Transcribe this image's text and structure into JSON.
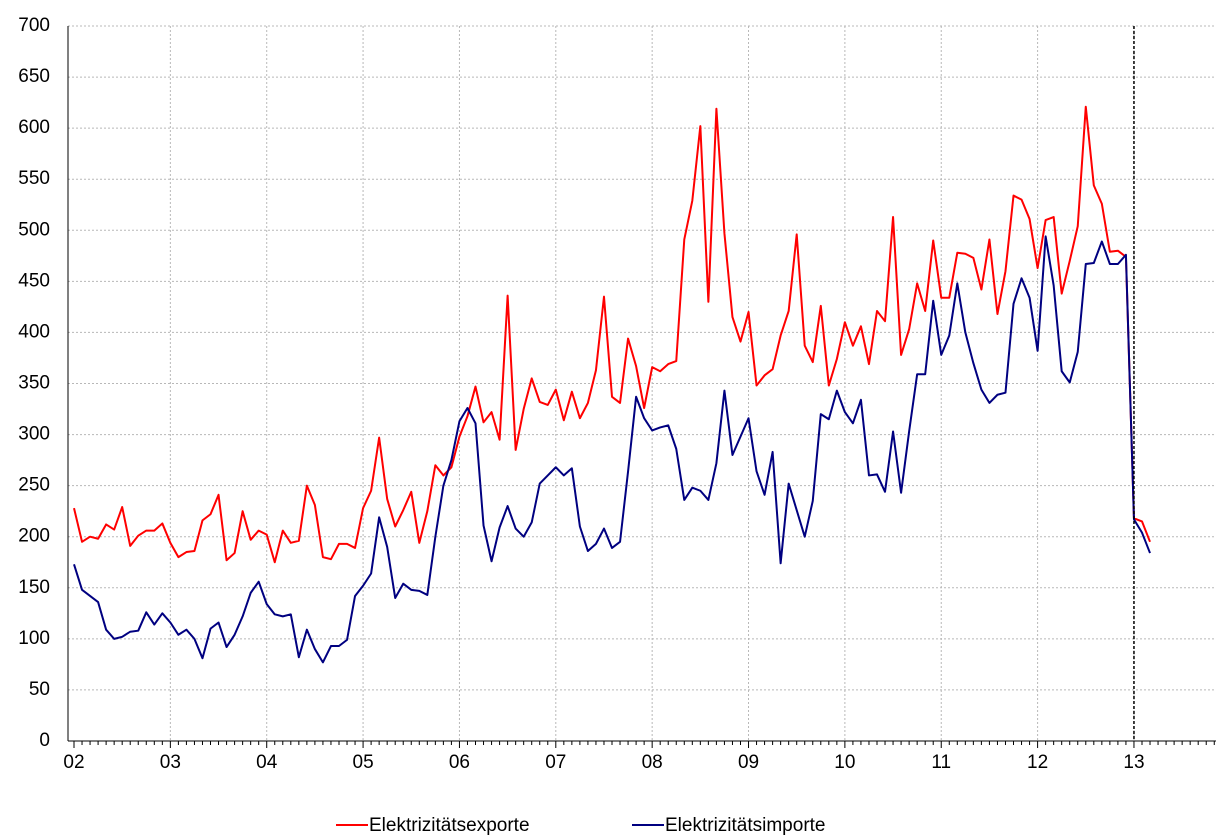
{
  "chart_data": {
    "type": "line",
    "categories": [
      "02",
      null,
      null,
      null,
      null,
      null,
      null,
      null,
      null,
      null,
      null,
      null,
      "03",
      null,
      null,
      null,
      null,
      null,
      null,
      null,
      null,
      null,
      null,
      null,
      "04",
      null,
      null,
      null,
      null,
      null,
      null,
      null,
      null,
      null,
      null,
      null,
      "05",
      null,
      null,
      null,
      null,
      null,
      null,
      null,
      null,
      null,
      null,
      null,
      "06",
      null,
      null,
      null,
      null,
      null,
      null,
      null,
      null,
      null,
      null,
      null,
      "07",
      null,
      null,
      null,
      null,
      null,
      null,
      null,
      null,
      null,
      null,
      null,
      "08",
      null,
      null,
      null,
      null,
      null,
      null,
      null,
      null,
      null,
      null,
      null,
      "09",
      null,
      null,
      null,
      null,
      null,
      null,
      null,
      null,
      null,
      null,
      null,
      "10",
      null,
      null,
      null,
      null,
      null,
      null,
      null,
      null,
      null,
      null,
      null,
      "11",
      null,
      null,
      null,
      null,
      null,
      null,
      null,
      null,
      null,
      null,
      null,
      "12",
      null,
      null,
      null,
      null,
      null,
      null,
      null,
      null,
      null,
      null,
      null,
      "13",
      null,
      null,
      null,
      null,
      null,
      null,
      null,
      null,
      null,
      null,
      null
    ],
    "series": [
      {
        "name": "Elektrizitätsexporte",
        "color": "#ff0000",
        "values": [
          228,
          195,
          200,
          198,
          212,
          207,
          229,
          191,
          201,
          206,
          206,
          213,
          194,
          180,
          185,
          186,
          216,
          222,
          241,
          177,
          184,
          225,
          197,
          206,
          202,
          175,
          206,
          194,
          196,
          250,
          231,
          180,
          178,
          193,
          193,
          189,
          228,
          245,
          297,
          237,
          210,
          226,
          244,
          194,
          225,
          270,
          260,
          268,
          298,
          318,
          347,
          312,
          322,
          295,
          436,
          285,
          325,
          355,
          332,
          329,
          344,
          314,
          342,
          316,
          331,
          363,
          435,
          337,
          331,
          394,
          367,
          326,
          366,
          362,
          369,
          372,
          491,
          529,
          602,
          430,
          619,
          497,
          415,
          391,
          420,
          348,
          358,
          364,
          397,
          421,
          496,
          387,
          371,
          426,
          348,
          374,
          410,
          387,
          406,
          369,
          421,
          411,
          513,
          378,
          403,
          448,
          421,
          490,
          434,
          434,
          478,
          477,
          473,
          442,
          491,
          418,
          460,
          534,
          530,
          511,
          463,
          510,
          513,
          438,
          470,
          504,
          621,
          544,
          526,
          479,
          480,
          474,
          218,
          215,
          195,
          null,
          null,
          null,
          null,
          null,
          null,
          null,
          null,
          null
        ]
      },
      {
        "name": "Elektrizitätsimporte",
        "color": "#000080",
        "values": [
          173,
          148,
          142,
          136,
          109,
          100,
          102,
          107,
          108,
          126,
          114,
          125,
          116,
          104,
          109,
          100,
          81,
          110,
          116,
          92,
          104,
          122,
          145,
          156,
          134,
          124,
          122,
          124,
          82,
          109,
          90,
          77,
          93,
          93,
          99,
          142,
          152,
          164,
          219,
          190,
          140,
          154,
          148,
          147,
          143,
          200,
          250,
          275,
          313,
          326,
          311,
          211,
          176,
          209,
          230,
          208,
          200,
          214,
          252,
          260,
          268,
          260,
          267,
          210,
          186,
          193,
          208,
          189,
          195,
          264,
          337,
          316,
          304,
          307,
          309,
          286,
          236,
          248,
          245,
          236,
          272,
          343,
          280,
          298,
          316,
          264,
          241,
          283,
          174,
          252,
          226,
          200,
          235,
          320,
          315,
          343,
          322,
          311,
          334,
          260,
          261,
          244,
          303,
          243,
          303,
          359,
          359,
          431,
          378,
          397,
          448,
          400,
          370,
          344,
          331,
          339,
          341,
          428,
          453,
          434,
          382,
          494,
          446,
          362,
          351,
          381,
          467,
          468,
          489,
          467,
          467,
          476,
          217,
          204,
          184,
          null,
          null,
          null,
          null,
          null,
          null,
          null,
          null,
          null
        ]
      }
    ],
    "ylim": [
      0,
      700
    ],
    "yticks": [
      0,
      50,
      100,
      150,
      200,
      250,
      300,
      350,
      400,
      450,
      500,
      550,
      600,
      650,
      700
    ],
    "grid": true,
    "legend": "bottom"
  }
}
